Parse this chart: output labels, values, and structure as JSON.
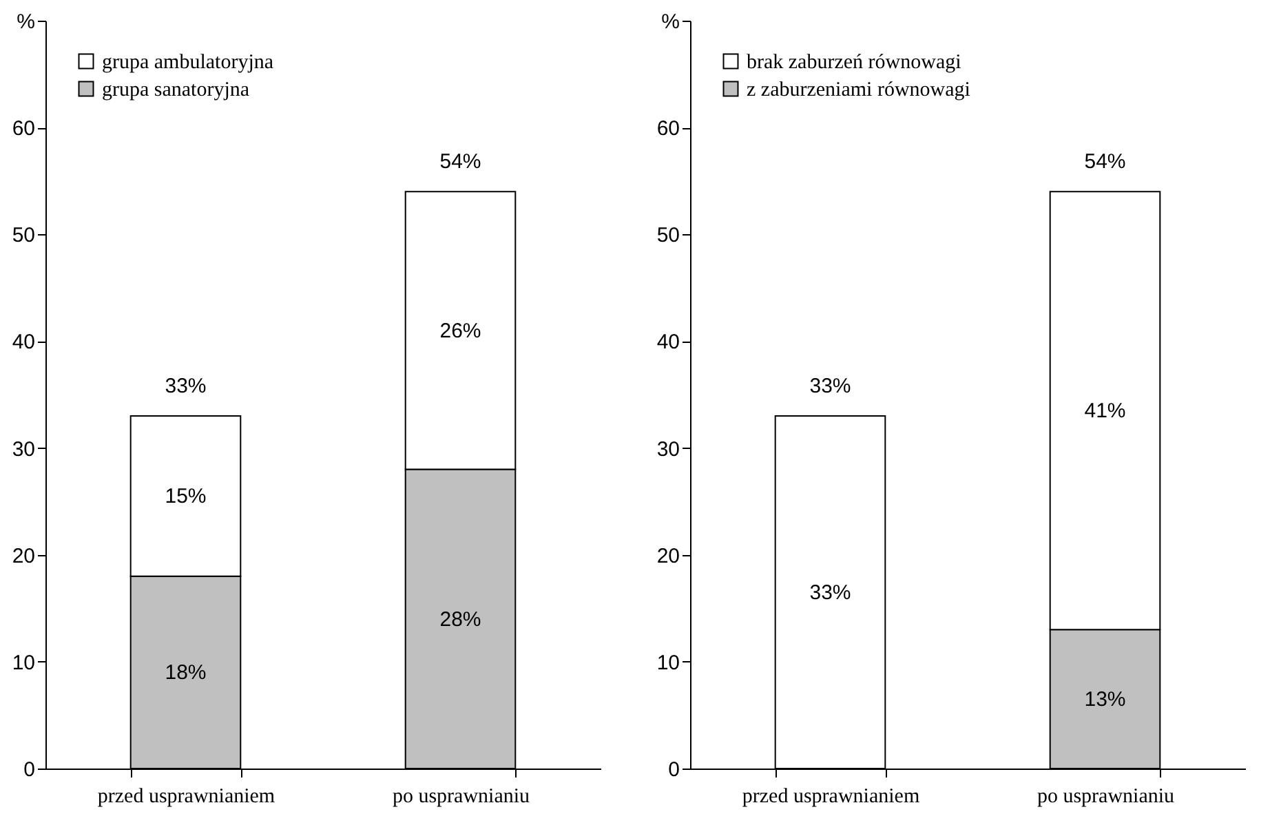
{
  "chart_data": [
    {
      "type": "bar",
      "stacked": true,
      "categories": [
        "przed usprawnianiem",
        "po usprawnianiu"
      ],
      "series": [
        {
          "name": "grupa sanatoryjna",
          "color": "#c0c0c0",
          "values": [
            18,
            28
          ],
          "value_labels": [
            "18%",
            "28%"
          ]
        },
        {
          "name": "grupa ambulatoryjna",
          "color": "#ffffff",
          "values": [
            15,
            26
          ],
          "value_labels": [
            "15%",
            "26%"
          ]
        }
      ],
      "totals": [
        "33%",
        "54%"
      ],
      "ylim": [
        0,
        70
      ],
      "yticks": [
        0,
        10,
        20,
        30,
        40,
        50,
        60,
        {
          "value": 70,
          "label": "%"
        }
      ],
      "grid": false,
      "legend": "top left"
    },
    {
      "type": "bar",
      "stacked": true,
      "categories": [
        "przed usprawnianiem",
        "po usprawnianiu"
      ],
      "series": [
        {
          "name": "z zaburzeniami równowagi",
          "color": "#c0c0c0",
          "values": [
            null,
            13
          ],
          "value_labels": [
            null,
            "13%"
          ]
        },
        {
          "name": "brak zaburzeń równowagi",
          "color": "#ffffff",
          "values": [
            33,
            41
          ],
          "value_labels": [
            "33%",
            "41%"
          ]
        }
      ],
      "totals": [
        "33%",
        "54%"
      ],
      "ylim": [
        0,
        70
      ],
      "yticks": [
        0,
        10,
        20,
        30,
        40,
        50,
        60,
        {
          "value": 70,
          "label": "%"
        }
      ],
      "grid": false,
      "legend": "top left"
    }
  ]
}
